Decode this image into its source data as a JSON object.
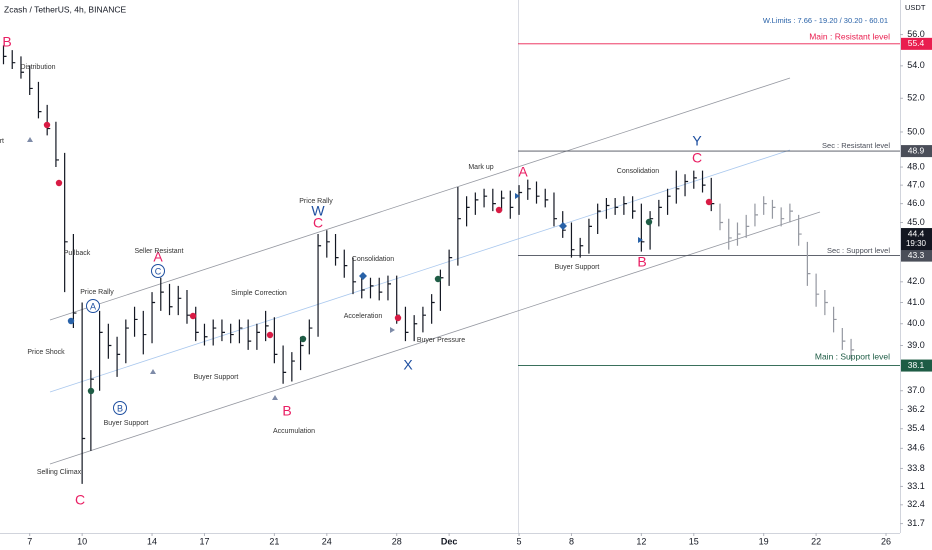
{
  "chart_data": {
    "type": "ohlc",
    "title": "Zcash / TetherUS, 4h, BINANCE",
    "y_unit": "USDT",
    "note": "W.Limits : 7.66 - 19.20 / 30.20 - 60.01",
    "log": true,
    "grid": false,
    "xlim": [
      -1.7,
      49.8
    ],
    "xticks": [
      {
        "value": 0,
        "label": "7"
      },
      {
        "value": 3,
        "label": "10"
      },
      {
        "value": 7,
        "label": "14"
      },
      {
        "value": 10,
        "label": "17"
      },
      {
        "value": 14,
        "label": "21"
      },
      {
        "value": 17,
        "label": "24"
      },
      {
        "value": 21,
        "label": "28"
      },
      {
        "value": 24,
        "label": "Dec"
      },
      {
        "value": 28,
        "label": "5"
      },
      {
        "value": 31,
        "label": "8"
      },
      {
        "value": 35,
        "label": "12"
      },
      {
        "value": 38,
        "label": "15"
      },
      {
        "value": 42,
        "label": "19"
      },
      {
        "value": 45,
        "label": "22"
      },
      {
        "value": 49,
        "label": "26"
      }
    ],
    "ylim": [
      31.1,
      58.3
    ],
    "yticks": [
      {
        "value": 56,
        "label": "56.0"
      },
      {
        "value": 54,
        "label": "54.0"
      },
      {
        "value": 52,
        "label": "52.0"
      },
      {
        "value": 50,
        "label": "50.0"
      },
      {
        "value": 48,
        "label": "48.0"
      },
      {
        "value": 47,
        "label": "47.0"
      },
      {
        "value": 46,
        "label": "46.0"
      },
      {
        "value": 45,
        "label": "45.0"
      },
      {
        "value": 42,
        "label": "42.0"
      },
      {
        "value": 41,
        "label": "41.0"
      },
      {
        "value": 40,
        "label": "40.0"
      },
      {
        "value": 39,
        "label": "39.0"
      },
      {
        "value": 37,
        "label": "37.0"
      },
      36.2,
      35.4,
      34.6,
      33.8,
      33.1,
      32.4,
      31.7
    ],
    "series": [
      {
        "color": "#131722",
        "x": [
          -1.5,
          -1,
          -0.5,
          0,
          0.5,
          1,
          1.5,
          2,
          2.5,
          3,
          3.5,
          4,
          4.5,
          5,
          5.5,
          6,
          6.5,
          7,
          7.5,
          8,
          8.5,
          9,
          9.5,
          10,
          10.5,
          11,
          11.5,
          12,
          12.5,
          13,
          13.5,
          14,
          14.5,
          15,
          15.5,
          16,
          16.5,
          17,
          17.5,
          18,
          18.5,
          19,
          19.5,
          20,
          20.5,
          21,
          21.5,
          22,
          22.5,
          23,
          23.5,
          24,
          24.5,
          25,
          25.5,
          26,
          26.5,
          27,
          27.5,
          28,
          28.5,
          29,
          29.5,
          30,
          30.5,
          31,
          31.5,
          32,
          32.5,
          33,
          33.5,
          34,
          34.5,
          35,
          35.5,
          36,
          36.5,
          37,
          37.5,
          38,
          38.5,
          39
        ],
        "high": [
          55.3,
          55.0,
          54.6,
          54.0,
          53.0,
          51.6,
          50.6,
          48.8,
          44.4,
          41.0,
          37.9,
          40.6,
          40.0,
          39.4,
          40.2,
          40.8,
          40.6,
          41.5,
          42.2,
          41.9,
          41.8,
          41.6,
          40.8,
          40.0,
          40.2,
          40.2,
          40.0,
          40.2,
          40.2,
          40.0,
          40.6,
          40.3,
          39.0,
          38.7,
          39.4,
          40.2,
          44.4,
          44.6,
          44.4,
          43.6,
          43.2,
          42.4,
          42.2,
          42.2,
          42.3,
          42.3,
          40.8,
          40.4,
          40.8,
          41.4,
          42.6,
          43.6,
          46.9,
          46.4,
          46.6,
          46.8,
          46.8,
          46.7,
          46.7,
          47.0,
          47.3,
          47.2,
          46.8,
          46.6,
          45.6,
          45.0,
          44.2,
          45.2,
          46.0,
          46.3,
          46.3,
          46.4,
          46.4,
          46.0,
          45.6,
          46.2,
          46.8,
          47.8,
          47.6,
          47.8,
          47.8,
          47.4
        ],
        "low": [
          54.1,
          53.8,
          53.2,
          52.2,
          50.8,
          49.8,
          48.0,
          41.5,
          39.8,
          33.2,
          34.5,
          37.0,
          38.4,
          37.6,
          38.2,
          39.4,
          38.6,
          39.1,
          40.6,
          40.4,
          40.4,
          40.0,
          39.2,
          39.0,
          39.0,
          39.2,
          39.1,
          39.1,
          38.8,
          38.8,
          39.2,
          38.2,
          37.3,
          37.4,
          37.9,
          38.6,
          39.4,
          43.2,
          42.8,
          42.2,
          41.4,
          41.2,
          41.2,
          41.1,
          41.1,
          40.0,
          39.2,
          39.2,
          39.6,
          40.0,
          40.6,
          41.8,
          42.8,
          44.8,
          45.4,
          45.8,
          45.6,
          45.6,
          45.2,
          45.4,
          46.2,
          46.0,
          45.8,
          44.8,
          44.2,
          43.2,
          43.2,
          43.4,
          44.4,
          45.2,
          45.4,
          45.4,
          45.2,
          43.5,
          43.6,
          44.8,
          45.4,
          46.0,
          46.4,
          46.8,
          46.6,
          45.6
        ],
        "close": [
          54.6,
          54.2,
          53.6,
          52.6,
          51.2,
          50.2,
          48.4,
          44.0,
          40.5,
          35.0,
          37.5,
          39.6,
          39.0,
          38.6,
          39.8,
          40.2,
          39.5,
          41.0,
          41.5,
          40.8,
          41.2,
          40.4,
          39.6,
          39.4,
          39.8,
          39.6,
          39.5,
          39.8,
          39.2,
          39.6,
          39.9,
          38.6,
          37.8,
          38.3,
          39.0,
          39.8,
          43.8,
          44.0,
          43.2,
          42.8,
          42.0,
          41.6,
          41.8,
          41.5,
          41.9,
          40.4,
          39.6,
          40.0,
          40.4,
          41.0,
          42.2,
          43.2,
          45.2,
          45.8,
          46.2,
          46.4,
          46.0,
          46.3,
          45.8,
          46.6,
          46.8,
          46.4,
          46.2,
          45.2,
          44.6,
          43.6,
          43.8,
          44.8,
          45.6,
          45.9,
          45.8,
          46.0,
          45.6,
          44.0,
          45.2,
          45.8,
          46.4,
          46.8,
          47.2,
          47.4,
          47.0,
          46.0
        ]
      },
      {
        "color": "#9598a1",
        "x": [
          39.5,
          40,
          40.5,
          41,
          41.5,
          42,
          42.5,
          43,
          43.5,
          44,
          44.5,
          45,
          45.5,
          46,
          46.5,
          47
        ],
        "high": [
          46.0,
          45.2,
          45.0,
          45.4,
          46.0,
          46.4,
          46.2,
          45.8,
          46.0,
          45.4,
          44.0,
          42.4,
          41.6,
          40.8,
          39.8,
          39.3
        ],
        "low": [
          44.6,
          43.6,
          43.8,
          44.2,
          44.8,
          45.4,
          45.2,
          44.8,
          45.0,
          43.8,
          41.8,
          40.8,
          40.4,
          39.6,
          38.8,
          38.4
        ],
        "close": [
          45.0,
          44.2,
          44.4,
          44.8,
          45.4,
          46.0,
          45.8,
          45.2,
          45.6,
          44.4,
          42.4,
          41.4,
          41.0,
          40.2,
          39.2,
          38.8
        ]
      }
    ],
    "levels": [
      {
        "label": "Main : Resistant level",
        "value": 55.4,
        "color": "#e91e4f"
      },
      {
        "label": "Sec : Resistant level",
        "value": 48.9,
        "color": "#4a4e59"
      },
      {
        "label": "Sec : Support level",
        "value": 43.3,
        "color": "#4a4e59"
      },
      {
        "label": "Main : Support level",
        "value": 38.1,
        "color": "#1e5c45"
      }
    ],
    "last_price": 44.4,
    "countdown": "19:30",
    "wave_labels": [
      {
        "text": "B",
        "color": "#e91e63"
      },
      {
        "text": "C",
        "color": "#e91e63"
      },
      {
        "text": "A",
        "color": "#1e4fa0"
      },
      {
        "text": "B",
        "color": "#1e4fa0"
      },
      {
        "text": "C",
        "color": "#1e4fa0"
      },
      {
        "text": "A",
        "color": "#e91e63"
      },
      {
        "text": "B",
        "color": "#e91e63"
      },
      {
        "text": "W",
        "color": "#1e4fa0"
      },
      {
        "text": "C",
        "color": "#e91e63"
      },
      {
        "text": "X",
        "color": "#1e4fa0"
      },
      {
        "text": "A",
        "color": "#e91e63"
      },
      {
        "text": "B",
        "color": "#e91e63"
      },
      {
        "text": "Y",
        "color": "#1e4fa0"
      },
      {
        "text": "C",
        "color": "#e91e63"
      }
    ],
    "notes": [
      "Distribution",
      "rt",
      "Pullback",
      "Price Rally",
      "Price Shock",
      "Buyer Support",
      "Seller Resistant",
      "Simple Correction",
      "Buyer Support",
      "Accumulation",
      "Price Rally",
      "Consolidation",
      "Acceleration",
      "Buyer Pressure",
      "Mark up",
      "Buyer Support",
      "Consolidation",
      "Selling Climax"
    ]
  }
}
